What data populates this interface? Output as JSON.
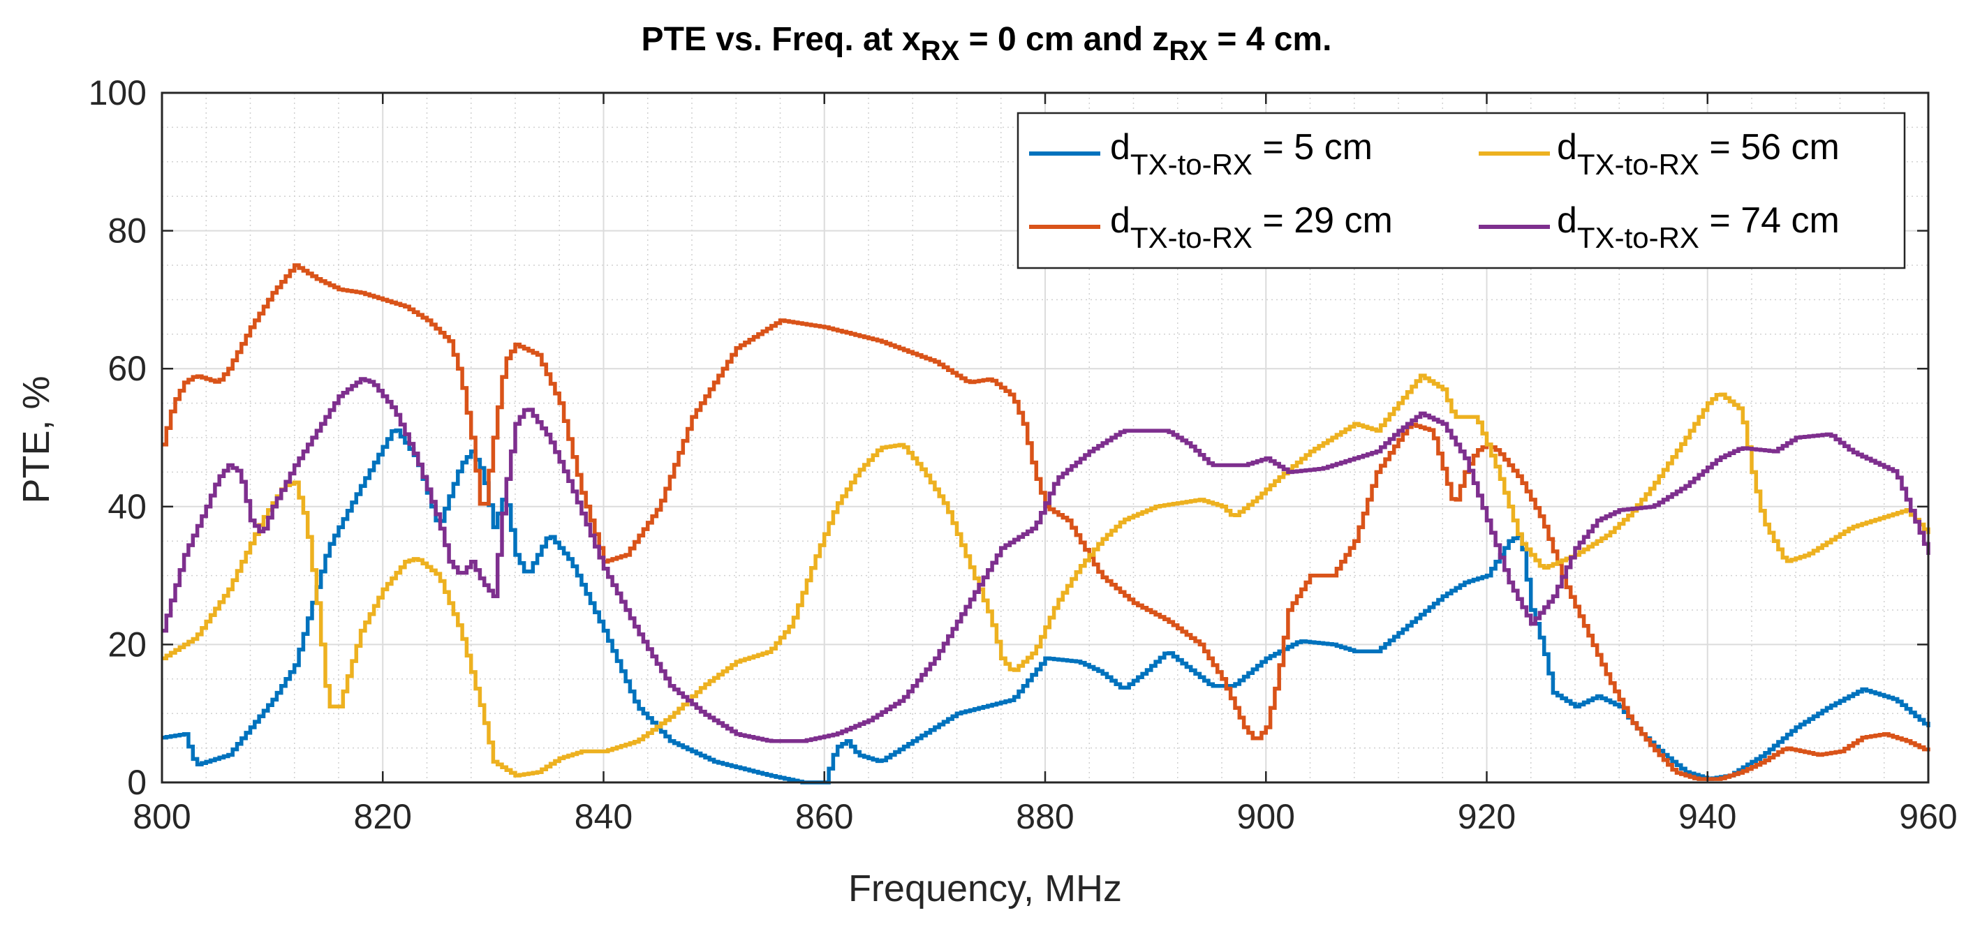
{
  "chart_data": {
    "type": "line",
    "title": {
      "prefix": "PTE vs. Freq. at x",
      "sub1": "RX",
      "middle": " = 0 cm and z",
      "sub2": "RX",
      "suffix": " = 4 cm."
    },
    "xlabel": "Frequency, MHz",
    "ylabel": "PTE, %",
    "xlim": [
      800,
      960
    ],
    "ylim": [
      0,
      100
    ],
    "xticks": [
      800,
      820,
      840,
      860,
      880,
      900,
      920,
      940,
      960
    ],
    "yticks": [
      0,
      20,
      40,
      60,
      80,
      100
    ],
    "xminor_step": 4,
    "yminor_step": 5,
    "grid": true,
    "legend": {
      "position": "top-right",
      "columns": 2
    },
    "series": [
      {
        "name": "5 cm",
        "label_main": "d",
        "label_sub": "TX-to-RX",
        "label_value": " = 5 cm",
        "color": "#0072BD",
        "points": [
          [
            800,
            6.5
          ],
          [
            802,
            7
          ],
          [
            803,
            2.5
          ],
          [
            806,
            4
          ],
          [
            810,
            12
          ],
          [
            812,
            17
          ],
          [
            815,
            34
          ],
          [
            818,
            43
          ],
          [
            821,
            51.5
          ],
          [
            823,
            47
          ],
          [
            825,
            37
          ],
          [
            827,
            46
          ],
          [
            828,
            48
          ],
          [
            829,
            45
          ],
          [
            830,
            37
          ],
          [
            831,
            42
          ],
          [
            832,
            33
          ],
          [
            833,
            30
          ],
          [
            835,
            36
          ],
          [
            837,
            32
          ],
          [
            840,
            22
          ],
          [
            843,
            11
          ],
          [
            846,
            6
          ],
          [
            850,
            3
          ],
          [
            855,
            1
          ],
          [
            858,
            0
          ],
          [
            860,
            0
          ],
          [
            861,
            5
          ],
          [
            862,
            6
          ],
          [
            863,
            4
          ],
          [
            865,
            3
          ],
          [
            868,
            6
          ],
          [
            872,
            10
          ],
          [
            877,
            12
          ],
          [
            880,
            18
          ],
          [
            883,
            17.5
          ],
          [
            885,
            16
          ],
          [
            887,
            13.5
          ],
          [
            889,
            16
          ],
          [
            891,
            19
          ],
          [
            893,
            16.5
          ],
          [
            895,
            14
          ],
          [
            897,
            14
          ],
          [
            900,
            18
          ],
          [
            903,
            20.5
          ],
          [
            906,
            20
          ],
          [
            908,
            19
          ],
          [
            910,
            19
          ],
          [
            913,
            23
          ],
          [
            916,
            27
          ],
          [
            918,
            29
          ],
          [
            920,
            30
          ],
          [
            922,
            35
          ],
          [
            923,
            36
          ],
          [
            924,
            25
          ],
          [
            925,
            20
          ],
          [
            926,
            13
          ],
          [
            928,
            11
          ],
          [
            930,
            12.5
          ],
          [
            932,
            11
          ],
          [
            934,
            7
          ],
          [
            936,
            4
          ],
          [
            938,
            1.5
          ],
          [
            940,
            0.5
          ],
          [
            942,
            1
          ],
          [
            945,
            4
          ],
          [
            948,
            8
          ],
          [
            951,
            11
          ],
          [
            954,
            13.5
          ],
          [
            957,
            12
          ],
          [
            960,
            8
          ]
        ]
      },
      {
        "name": "29 cm",
        "label_main": "d",
        "label_sub": "TX-to-RX",
        "label_value": " = 29 cm",
        "color": "#D95319",
        "points": [
          [
            800,
            49
          ],
          [
            801,
            55
          ],
          [
            802,
            58
          ],
          [
            803,
            59
          ],
          [
            805,
            58
          ],
          [
            806,
            60
          ],
          [
            808,
            66
          ],
          [
            810,
            71
          ],
          [
            812,
            75
          ],
          [
            814,
            73
          ],
          [
            816,
            71.5
          ],
          [
            818,
            71
          ],
          [
            822,
            69
          ],
          [
            824,
            67
          ],
          [
            826,
            64
          ],
          [
            827,
            59
          ],
          [
            828,
            50
          ],
          [
            829,
            38
          ],
          [
            830,
            50
          ],
          [
            831,
            61
          ],
          [
            832,
            63.5
          ],
          [
            834,
            62
          ],
          [
            836,
            55
          ],
          [
            838,
            42
          ],
          [
            840,
            32
          ],
          [
            842,
            33
          ],
          [
            845,
            40
          ],
          [
            848,
            53
          ],
          [
            852,
            63
          ],
          [
            856,
            67
          ],
          [
            860,
            66
          ],
          [
            865,
            64
          ],
          [
            870,
            61
          ],
          [
            873,
            58
          ],
          [
            875,
            58.5
          ],
          [
            877,
            56
          ],
          [
            878,
            52
          ],
          [
            879,
            45
          ],
          [
            880,
            40
          ],
          [
            882,
            38
          ],
          [
            885,
            30
          ],
          [
            888,
            26
          ],
          [
            891,
            23.5
          ],
          [
            894,
            20
          ],
          [
            896,
            15
          ],
          [
            898,
            8
          ],
          [
            899,
            6
          ],
          [
            900,
            8
          ],
          [
            901,
            15
          ],
          [
            902,
            25
          ],
          [
            904,
            30
          ],
          [
            906,
            30
          ],
          [
            908,
            35
          ],
          [
            910,
            45
          ],
          [
            913,
            52
          ],
          [
            915,
            51
          ],
          [
            917,
            40
          ],
          [
            918,
            45
          ],
          [
            919,
            48
          ],
          [
            920,
            49
          ],
          [
            921,
            48
          ],
          [
            923,
            44
          ],
          [
            925,
            38
          ],
          [
            927,
            29
          ],
          [
            929,
            22
          ],
          [
            931,
            15
          ],
          [
            933,
            9
          ],
          [
            935,
            5
          ],
          [
            937,
            1.5
          ],
          [
            939,
            0.5
          ],
          [
            941,
            0.5
          ],
          [
            943,
            1.5
          ],
          [
            945,
            3
          ],
          [
            947,
            5
          ],
          [
            950,
            4
          ],
          [
            952,
            4.5
          ],
          [
            954,
            6.5
          ],
          [
            956,
            7
          ],
          [
            958,
            6
          ],
          [
            960,
            4.5
          ]
        ]
      },
      {
        "name": "56 cm",
        "label_main": "d",
        "label_sub": "TX-to-RX",
        "label_value": " = 56 cm",
        "color": "#EDB120",
        "points": [
          [
            800,
            18
          ],
          [
            803,
            21
          ],
          [
            806,
            28
          ],
          [
            809,
            38
          ],
          [
            811,
            43
          ],
          [
            812,
            43.5
          ],
          [
            813,
            38
          ],
          [
            814,
            26
          ],
          [
            815,
            11
          ],
          [
            816,
            11
          ],
          [
            818,
            22
          ],
          [
            820,
            28
          ],
          [
            822,
            32
          ],
          [
            823,
            32.5
          ],
          [
            825,
            30
          ],
          [
            827,
            22
          ],
          [
            829,
            10
          ],
          [
            830,
            3
          ],
          [
            832,
            1
          ],
          [
            834,
            1.5
          ],
          [
            836,
            3.5
          ],
          [
            838,
            4.5
          ],
          [
            840,
            4.5
          ],
          [
            843,
            6
          ],
          [
            846,
            9.5
          ],
          [
            849,
            14
          ],
          [
            852,
            17.5
          ],
          [
            855,
            19
          ],
          [
            857,
            23
          ],
          [
            859,
            32
          ],
          [
            861,
            40
          ],
          [
            863,
            45
          ],
          [
            865,
            48.5
          ],
          [
            867,
            49
          ],
          [
            869,
            45
          ],
          [
            871,
            40
          ],
          [
            873,
            32
          ],
          [
            875,
            24
          ],
          [
            876,
            18
          ],
          [
            877,
            16
          ],
          [
            879,
            19
          ],
          [
            881,
            26
          ],
          [
            883,
            31
          ],
          [
            885,
            35
          ],
          [
            887,
            38
          ],
          [
            890,
            40
          ],
          [
            894,
            41
          ],
          [
            896,
            40
          ],
          [
            897,
            38.5
          ],
          [
            899,
            41
          ],
          [
            901,
            44
          ],
          [
            904,
            48
          ],
          [
            907,
            51
          ],
          [
            908,
            52
          ],
          [
            910,
            51
          ],
          [
            912,
            55
          ],
          [
            914,
            59
          ],
          [
            916,
            57
          ],
          [
            917,
            53
          ],
          [
            919,
            53
          ],
          [
            921,
            45
          ],
          [
            923,
            35
          ],
          [
            925,
            31
          ],
          [
            928,
            33
          ],
          [
            931,
            36
          ],
          [
            933,
            39
          ],
          [
            935,
            43
          ],
          [
            938,
            50
          ],
          [
            940,
            55
          ],
          [
            941,
            56.5
          ],
          [
            943,
            54
          ],
          [
            944,
            45
          ],
          [
            945,
            38
          ],
          [
            947,
            32
          ],
          [
            949,
            33
          ],
          [
            951,
            35
          ],
          [
            953,
            37
          ],
          [
            955,
            38
          ],
          [
            958,
            39.5
          ],
          [
            960,
            36
          ]
        ]
      },
      {
        "name": "74 cm",
        "label_main": "d",
        "label_sub": "TX-to-RX",
        "label_value": " = 74 cm",
        "color": "#7E2F8E",
        "points": [
          [
            800,
            22
          ],
          [
            802,
            33
          ],
          [
            804,
            40
          ],
          [
            805,
            44
          ],
          [
            806,
            46
          ],
          [
            807,
            45
          ],
          [
            808,
            38
          ],
          [
            809,
            36
          ],
          [
            810,
            40
          ],
          [
            812,
            46
          ],
          [
            814,
            51
          ],
          [
            816,
            56
          ],
          [
            818,
            58.5
          ],
          [
            819,
            58
          ],
          [
            821,
            54
          ],
          [
            823,
            47
          ],
          [
            825,
            38
          ],
          [
            826,
            32
          ],
          [
            827,
            30
          ],
          [
            828,
            32
          ],
          [
            829,
            29
          ],
          [
            830,
            27
          ],
          [
            831,
            42
          ],
          [
            832,
            52
          ],
          [
            833,
            54.5
          ],
          [
            835,
            50
          ],
          [
            837,
            43
          ],
          [
            840,
            31
          ],
          [
            843,
            22
          ],
          [
            846,
            14
          ],
          [
            849,
            10
          ],
          [
            852,
            7
          ],
          [
            855,
            6
          ],
          [
            858,
            6
          ],
          [
            861,
            7
          ],
          [
            864,
            9
          ],
          [
            867,
            12
          ],
          [
            870,
            18
          ],
          [
            873,
            26
          ],
          [
            876,
            34
          ],
          [
            879,
            37
          ],
          [
            881,
            44
          ],
          [
            884,
            48
          ],
          [
            887,
            51
          ],
          [
            891,
            51
          ],
          [
            893,
            49
          ],
          [
            895,
            46
          ],
          [
            898,
            46
          ],
          [
            900,
            47
          ],
          [
            902,
            45
          ],
          [
            905,
            45.5
          ],
          [
            908,
            47
          ],
          [
            910,
            48
          ],
          [
            912,
            51
          ],
          [
            914,
            53.5
          ],
          [
            916,
            52
          ],
          [
            918,
            47
          ],
          [
            920,
            38
          ],
          [
            922,
            29
          ],
          [
            924,
            23
          ],
          [
            926,
            27
          ],
          [
            928,
            34
          ],
          [
            930,
            38
          ],
          [
            932,
            39.5
          ],
          [
            935,
            40
          ],
          [
            938,
            43
          ],
          [
            941,
            47
          ],
          [
            943,
            48.5
          ],
          [
            946,
            48
          ],
          [
            948,
            50
          ],
          [
            951,
            50.5
          ],
          [
            953,
            48
          ],
          [
            955,
            46.5
          ],
          [
            957,
            45
          ],
          [
            958,
            41
          ],
          [
            960,
            33
          ]
        ]
      }
    ]
  }
}
